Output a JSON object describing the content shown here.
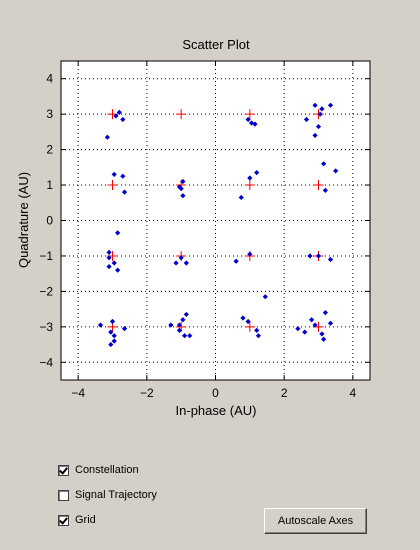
{
  "chart_data": {
    "type": "scatter",
    "title": "Scatter Plot",
    "xlabel": "In-phase (AU)",
    "ylabel": "Quadrature (AU)",
    "xlim": [
      -4.5,
      4.5
    ],
    "ylim": [
      -4.5,
      4.5
    ],
    "xticks": [
      -4,
      -2,
      0,
      2,
      4
    ],
    "yticks": [
      -4,
      -3,
      -2,
      -1,
      0,
      1,
      2,
      3,
      4
    ],
    "grid": true,
    "series": [
      {
        "marker": "plus",
        "color": "#ff0000",
        "points": [
          [
            -3,
            3
          ],
          [
            -1,
            3
          ],
          [
            1,
            3
          ],
          [
            3,
            3
          ],
          [
            -3,
            1
          ],
          [
            -1,
            1
          ],
          [
            1,
            1
          ],
          [
            3,
            1
          ],
          [
            -3,
            -1
          ],
          [
            -1,
            -1
          ],
          [
            1,
            -1
          ],
          [
            3,
            -1
          ],
          [
            -3,
            -3
          ],
          [
            -1,
            -3
          ],
          [
            1,
            -3
          ],
          [
            3,
            -3
          ]
        ]
      },
      {
        "marker": "dot",
        "color": "#0000cc",
        "points": [
          [
            -2.8,
            3.05
          ],
          [
            -2.7,
            2.85
          ],
          [
            -3.15,
            2.35
          ],
          [
            -2.9,
            2.95
          ],
          [
            1.05,
            2.75
          ],
          [
            1.15,
            2.72
          ],
          [
            0.95,
            2.85
          ],
          [
            2.9,
            3.25
          ],
          [
            3.1,
            3.15
          ],
          [
            3.35,
            3.25
          ],
          [
            2.65,
            2.85
          ],
          [
            2.9,
            2.4
          ],
          [
            3.0,
            2.65
          ],
          [
            3.05,
            3.0
          ],
          [
            -2.95,
            1.3
          ],
          [
            -2.7,
            1.25
          ],
          [
            -2.65,
            0.8
          ],
          [
            -0.95,
            1.1
          ],
          [
            -1.0,
            0.9
          ],
          [
            -0.95,
            0.7
          ],
          [
            -1.05,
            0.95
          ],
          [
            0.75,
            0.65
          ],
          [
            1.0,
            1.2
          ],
          [
            1.2,
            1.35
          ],
          [
            3.15,
            1.6
          ],
          [
            3.5,
            1.4
          ],
          [
            3.2,
            0.85
          ],
          [
            -2.85,
            -0.35
          ],
          [
            -3.1,
            -0.9
          ],
          [
            -3.1,
            -1.05
          ],
          [
            -3.1,
            -1.3
          ],
          [
            -2.95,
            -1.2
          ],
          [
            -2.85,
            -1.4
          ],
          [
            -1.15,
            -1.2
          ],
          [
            -1.0,
            -1.05
          ],
          [
            -0.85,
            -1.2
          ],
          [
            0.6,
            -1.15
          ],
          [
            1.0,
            -0.95
          ],
          [
            2.75,
            -1.0
          ],
          [
            3.35,
            -1.1
          ],
          [
            3.0,
            -1.0
          ],
          [
            -3.35,
            -2.95
          ],
          [
            -3.0,
            -2.85
          ],
          [
            -3.05,
            -3.15
          ],
          [
            -2.95,
            -3.25
          ],
          [
            -3.05,
            -3.5
          ],
          [
            -2.95,
            -3.4
          ],
          [
            -2.65,
            -3.05
          ],
          [
            -1.3,
            -2.95
          ],
          [
            -1.05,
            -2.95
          ],
          [
            -0.95,
            -2.8
          ],
          [
            -0.85,
            -2.65
          ],
          [
            -1.05,
            -3.1
          ],
          [
            -0.9,
            -3.25
          ],
          [
            -0.75,
            -3.25
          ],
          [
            0.8,
            -2.75
          ],
          [
            0.95,
            -2.85
          ],
          [
            1.2,
            -3.1
          ],
          [
            1.25,
            -3.25
          ],
          [
            1.45,
            -2.15
          ],
          [
            2.4,
            -3.05
          ],
          [
            2.6,
            -3.15
          ],
          [
            2.8,
            -2.8
          ],
          [
            2.9,
            -2.95
          ],
          [
            3.2,
            -2.6
          ],
          [
            3.1,
            -3.2
          ],
          [
            3.15,
            -3.35
          ],
          [
            3.35,
            -2.9
          ]
        ]
      }
    ]
  },
  "controls": {
    "constellation": {
      "label": "Constellation",
      "checked": true
    },
    "signal_trajectory": {
      "label": "Signal Trajectory",
      "checked": false
    },
    "grid": {
      "label": "Grid",
      "checked": true
    },
    "autoscale_label": "Autoscale Axes"
  }
}
